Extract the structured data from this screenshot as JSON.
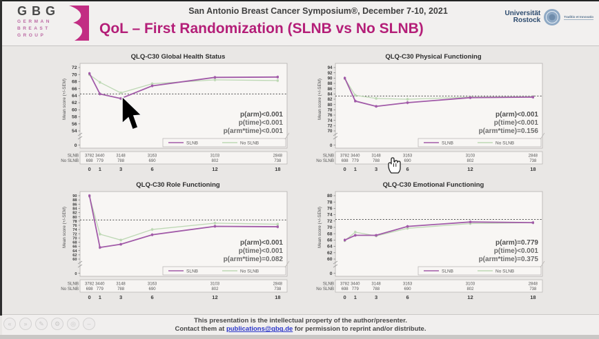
{
  "header": {
    "logo": {
      "acronym": "GBG",
      "lines": [
        "GERMAN",
        "BREAST",
        "GROUP"
      ]
    },
    "conference": "San Antonio Breast Cancer Symposium®, December 7-10, 2021",
    "title": "QoL – First Randomization (SLNB vs No SLNB)",
    "university": {
      "name1": "Universität",
      "name2": "Rostock",
      "motto": "Traditio et Innovatio"
    }
  },
  "footer": {
    "line1": "This presentation is the intellectual property of the author/presenter.",
    "line2_prefix": "Contact them at ",
    "email": "publications@gbg.de",
    "line2_suffix": " for permission to reprint and/or distribute.",
    "player_icons": [
      {
        "name": "rewind-icon",
        "glyph": "«"
      },
      {
        "name": "forward-icon",
        "glyph": "»"
      },
      {
        "name": "pen-icon",
        "glyph": "✎"
      },
      {
        "name": "gear-icon",
        "glyph": "⚙"
      },
      {
        "name": "zoom-icon",
        "glyph": "◎"
      },
      {
        "name": "minus-icon",
        "glyph": "–"
      }
    ]
  },
  "colors": {
    "brand_magenta": "#b41e78",
    "slnb_purple": "#a15aa8",
    "no_slnb_green": "#bdd8b4",
    "link_blue": "#2a35c9"
  },
  "chart_data": [
    {
      "type": "line",
      "title": "QLQ-C30 Global Health Status",
      "ylabel": "Mean score (+/-SEM)",
      "x": [
        0,
        1,
        3,
        6,
        12,
        18
      ],
      "xticks": [
        0,
        1,
        3,
        6,
        12,
        18
      ],
      "ylim": [
        54,
        72
      ],
      "ytick_step": 2,
      "ref_line": 64.5,
      "grid": false,
      "legend_position": "bottom-right",
      "series": [
        {
          "name": "SLNB",
          "color": "#a15aa8",
          "values": [
            70.3,
            64.5,
            63.2,
            66.8,
            69.2,
            69.3
          ]
        },
        {
          "name": "No SLNB",
          "color": "#bdd8b4",
          "values": [
            70.0,
            67.8,
            64.8,
            67.4,
            68.5,
            68.3
          ]
        }
      ],
      "pvalues": [
        "p(arm)<0.001",
        "p(time)<0.001",
        "p(arm*time)<0.001"
      ],
      "n_table": {
        "rows": [
          {
            "label": "SLNB",
            "values": [
              "3782",
              "3440",
              "3148",
              "3163",
              "3103",
              "2848"
            ]
          },
          {
            "label": "No SLNB",
            "values": [
              "698",
              "779",
              "788",
              "690",
              "802",
              "738"
            ]
          }
        ]
      }
    },
    {
      "type": "line",
      "title": "QLQ-C30 Physical Functioning",
      "ylabel": "Mean score (+/-SEM)",
      "x": [
        0,
        1,
        3,
        6,
        12,
        18
      ],
      "xticks": [
        0,
        1,
        3,
        6,
        12,
        18
      ],
      "ylim": [
        70,
        94
      ],
      "ytick_step": 2,
      "ref_line": 83.2,
      "grid": false,
      "legend_position": "bottom-right",
      "series": [
        {
          "name": "SLNB",
          "color": "#a15aa8",
          "values": [
            90.0,
            81.3,
            79.3,
            80.7,
            82.6,
            82.8
          ]
        },
        {
          "name": "No SLNB",
          "color": "#bdd8b4",
          "values": [
            89.8,
            83.5,
            82.3,
            82.0,
            82.8,
            83.0
          ]
        }
      ],
      "pvalues": [
        "p(arm)<0.001",
        "p(time)<0.001",
        "p(arm*time)=0.156"
      ],
      "n_table": {
        "rows": [
          {
            "label": "SLNB",
            "values": [
              "3782",
              "3440",
              "3148",
              "3163",
              "3103",
              "2848"
            ]
          },
          {
            "label": "No SLNB",
            "values": [
              "698",
              "779",
              "788",
              "690",
              "802",
              "738"
            ]
          }
        ]
      }
    },
    {
      "type": "line",
      "title": "QLQ-C30 Role Functioning",
      "ylabel": "Mean score (+/-SEM)",
      "x": [
        0,
        1,
        3,
        6,
        12,
        18
      ],
      "xticks": [
        0,
        1,
        3,
        6,
        12,
        18
      ],
      "ylim": [
        60,
        90
      ],
      "ytick_step": 2,
      "ref_line": 78.5,
      "grid": false,
      "legend_position": "bottom-right",
      "series": [
        {
          "name": "SLNB",
          "color": "#a15aa8",
          "values": [
            90.0,
            65.5,
            67.0,
            71.5,
            75.5,
            75.3
          ]
        },
        {
          "name": "No SLNB",
          "color": "#bdd8b4",
          "values": [
            89.7,
            71.8,
            69.0,
            74.0,
            77.0,
            76.5
          ]
        }
      ],
      "pvalues": [
        "p(arm)<0.001",
        "p(time)<0.001",
        "p(arm*time)=0.082"
      ],
      "n_table": {
        "rows": [
          {
            "label": "SLNB",
            "values": [
              "3782",
              "3440",
              "3148",
              "3163",
              "3103",
              "2848"
            ]
          },
          {
            "label": "No SLNB",
            "values": [
              "698",
              "779",
              "788",
              "690",
              "802",
              "738"
            ]
          }
        ]
      }
    },
    {
      "type": "line",
      "title": "QLQ-C30 Emotional Functioning",
      "ylabel": "Mean score (+/-SEM)",
      "x": [
        0,
        1,
        3,
        6,
        12,
        18
      ],
      "xticks": [
        0,
        1,
        3,
        6,
        12,
        18
      ],
      "ylim": [
        60,
        80
      ],
      "ytick_step": 2,
      "ref_line": 72.5,
      "grid": false,
      "legend_position": "bottom-right",
      "series": [
        {
          "name": "SLNB",
          "color": "#a15aa8",
          "values": [
            66.0,
            67.5,
            67.5,
            70.3,
            71.7,
            71.5
          ]
        },
        {
          "name": "No SLNB",
          "color": "#bdd8b4",
          "values": [
            65.8,
            68.5,
            67.3,
            69.7,
            71.2,
            71.5
          ]
        }
      ],
      "pvalues": [
        "p(arm)=0.779",
        "p(time)<0.001",
        "p(arm*time)=0.375"
      ],
      "n_table": {
        "rows": [
          {
            "label": "SLNB",
            "values": [
              "3782",
              "3440",
              "3148",
              "3163",
              "3103",
              "2848"
            ]
          },
          {
            "label": "No SLNB",
            "values": [
              "698",
              "779",
              "788",
              "690",
              "802",
              "738"
            ]
          }
        ]
      }
    }
  ]
}
